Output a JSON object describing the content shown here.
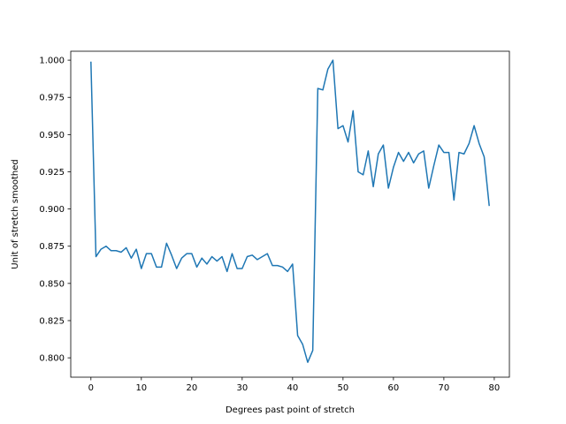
{
  "chart_data": {
    "type": "line",
    "title": "",
    "xlabel": "Degrees past point of stretch",
    "ylabel": "Unit of stretch smoothed",
    "xlim": [
      -4,
      83
    ],
    "ylim": [
      0.787,
      1.006
    ],
    "grid": false,
    "legend": "none",
    "colors": {
      "line": "#1f77b4",
      "axes": "#000000"
    },
    "xticks": [
      0,
      10,
      20,
      30,
      40,
      50,
      60,
      70,
      80
    ],
    "xtick_labels": [
      "0",
      "10",
      "20",
      "30",
      "40",
      "50",
      "60",
      "70",
      "80"
    ],
    "yticks": [
      0.8,
      0.825,
      0.85,
      0.875,
      0.9,
      0.925,
      0.95,
      0.975,
      1.0
    ],
    "ytick_labels": [
      "0.800",
      "0.825",
      "0.850",
      "0.875",
      "0.900",
      "0.925",
      "0.950",
      "0.975",
      "1.000"
    ],
    "series": [
      {
        "x": [
          0,
          1,
          2,
          3,
          4,
          5,
          6,
          7,
          8,
          9,
          10,
          11,
          12,
          13,
          14,
          15,
          16,
          17,
          18,
          19,
          20,
          21,
          22,
          23,
          24,
          25,
          26,
          27,
          28,
          29,
          30,
          31,
          32,
          33,
          34,
          35,
          36,
          37,
          38,
          39,
          40,
          41,
          42,
          43,
          44,
          45,
          46,
          47,
          48,
          49,
          50,
          51,
          52,
          53,
          54,
          55,
          56,
          57,
          58,
          59,
          60,
          61,
          62,
          63,
          64,
          65,
          66,
          67,
          68,
          69,
          70,
          71,
          72,
          73,
          74,
          75,
          76,
          77,
          78,
          79
        ],
        "values": [
          0.999,
          0.868,
          0.873,
          0.875,
          0.872,
          0.872,
          0.871,
          0.874,
          0.867,
          0.873,
          0.86,
          0.87,
          0.87,
          0.861,
          0.861,
          0.877,
          0.869,
          0.86,
          0.867,
          0.87,
          0.87,
          0.861,
          0.867,
          0.863,
          0.868,
          0.865,
          0.868,
          0.858,
          0.87,
          0.86,
          0.86,
          0.868,
          0.869,
          0.866,
          0.868,
          0.87,
          0.862,
          0.862,
          0.861,
          0.858,
          0.863,
          0.815,
          0.809,
          0.797,
          0.805,
          0.981,
          0.98,
          0.994,
          1.0,
          0.954,
          0.956,
          0.945,
          0.966,
          0.925,
          0.923,
          0.939,
          0.915,
          0.937,
          0.943,
          0.914,
          0.928,
          0.938,
          0.932,
          0.938,
          0.931,
          0.937,
          0.939,
          0.914,
          0.929,
          0.943,
          0.938,
          0.938,
          0.906,
          0.938,
          0.937,
          0.944,
          0.956,
          0.944,
          0.935,
          0.902
        ]
      }
    ]
  }
}
